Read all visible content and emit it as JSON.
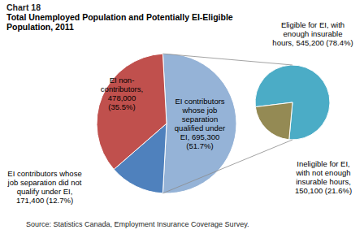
{
  "chart_data": [
    {
      "type": "pie",
      "title": "Chart 18",
      "subtitle": "Total Unemployed Population and Potentially EI-Eligible Population, 2011",
      "categories": [
        "EI contributors whose job separation qualified under EI,",
        "EI contributors whose job separation did not qualify under EI,",
        "EI non-contributors,"
      ],
      "values": [
        695300,
        171400,
        478000
      ],
      "value_labels": [
        "695,300 (51.7%)",
        "171,400 (12.7%)",
        "478,000 (35.5%)"
      ],
      "colors": [
        "#95b3d7",
        "#4f81bd",
        "#c0504d"
      ],
      "data_labels": true,
      "annotations": [
        "Source: Statistics Canada, Employment Insurance Coverage Survey."
      ]
    },
    {
      "type": "pie",
      "categories": [
        "Eligible for EI, with enough insurable hours,",
        "Ineligible for EI, with not enough insurable hours,"
      ],
      "values": [
        545200,
        150100
      ],
      "value_labels": [
        "545,200 (78.4%)",
        "150,100 (21.6%)"
      ],
      "colors": [
        "#4bacc6",
        "#948a54"
      ],
      "data_labels": true
    }
  ]
}
